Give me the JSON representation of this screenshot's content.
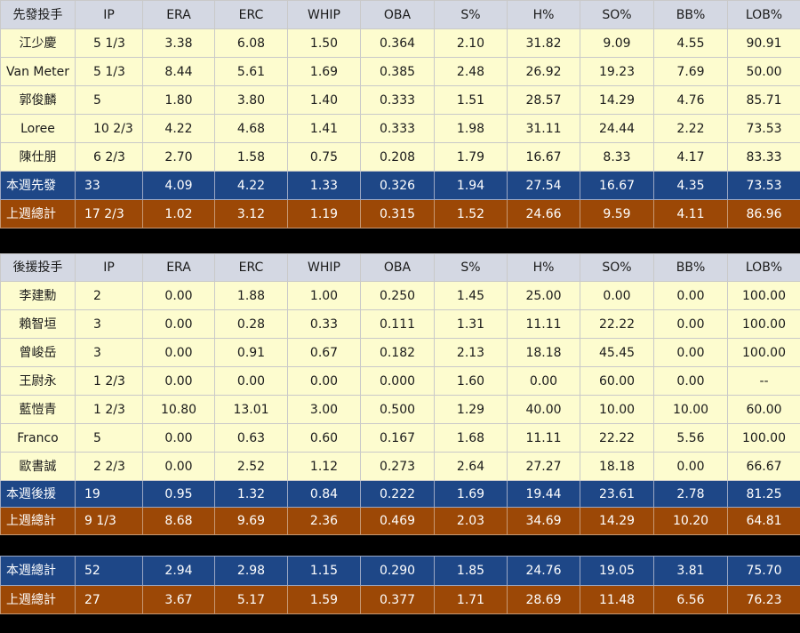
{
  "header": [
    "IP",
    "ERA",
    "ERC",
    "WHIP",
    "OBA",
    "S%",
    "H%",
    "SO%",
    "BB%",
    "LOB%"
  ],
  "starters": {
    "label": "先發投手",
    "rows": [
      [
        "江少慶",
        "5 1/3",
        "3.38",
        "6.08",
        "1.50",
        "0.364",
        "2.10",
        "31.82",
        "9.09",
        "4.55",
        "90.91"
      ],
      [
        "Van Meter",
        "5 1/3",
        "8.44",
        "5.61",
        "1.69",
        "0.385",
        "2.48",
        "26.92",
        "19.23",
        "7.69",
        "50.00"
      ],
      [
        "郭俊麟",
        "5",
        "1.80",
        "3.80",
        "1.40",
        "0.333",
        "1.51",
        "28.57",
        "14.29",
        "4.76",
        "85.71"
      ],
      [
        "Loree",
        "10 2/3",
        "4.22",
        "4.68",
        "1.41",
        "0.333",
        "1.98",
        "31.11",
        "24.44",
        "2.22",
        "73.53"
      ],
      [
        "陳仕朋",
        "6 2/3",
        "2.70",
        "1.58",
        "0.75",
        "0.208",
        "1.79",
        "16.67",
        "8.33",
        "4.17",
        "83.33"
      ]
    ],
    "week": [
      "本週先發",
      "33",
      "4.09",
      "4.22",
      "1.33",
      "0.326",
      "1.94",
      "27.54",
      "16.67",
      "4.35",
      "73.53"
    ],
    "last": [
      "上週總計",
      "17 2/3",
      "1.02",
      "3.12",
      "1.19",
      "0.315",
      "1.52",
      "24.66",
      "9.59",
      "4.11",
      "86.96"
    ]
  },
  "relievers": {
    "label": "後援投手",
    "rows": [
      [
        "李建勳",
        "2",
        "0.00",
        "1.88",
        "1.00",
        "0.250",
        "1.45",
        "25.00",
        "0.00",
        "0.00",
        "100.00"
      ],
      [
        "賴智垣",
        "3",
        "0.00",
        "0.28",
        "0.33",
        "0.111",
        "1.31",
        "11.11",
        "22.22",
        "0.00",
        "100.00"
      ],
      [
        "曾峻岳",
        "3",
        "0.00",
        "0.91",
        "0.67",
        "0.182",
        "2.13",
        "18.18",
        "45.45",
        "0.00",
        "100.00"
      ],
      [
        "王尉永",
        "1 2/3",
        "0.00",
        "0.00",
        "0.00",
        "0.000",
        "1.60",
        "0.00",
        "60.00",
        "0.00",
        "--"
      ],
      [
        "藍愷青",
        "1 2/3",
        "10.80",
        "13.01",
        "3.00",
        "0.500",
        "1.29",
        "40.00",
        "10.00",
        "10.00",
        "60.00"
      ],
      [
        "Franco",
        "5",
        "0.00",
        "0.63",
        "0.60",
        "0.167",
        "1.68",
        "11.11",
        "22.22",
        "5.56",
        "100.00"
      ],
      [
        "歐書誠",
        "2 2/3",
        "0.00",
        "2.52",
        "1.12",
        "0.273",
        "2.64",
        "27.27",
        "18.18",
        "0.00",
        "66.67"
      ]
    ],
    "week": [
      "本週後援",
      "19",
      "0.95",
      "1.32",
      "0.84",
      "0.222",
      "1.69",
      "19.44",
      "23.61",
      "2.78",
      "81.25"
    ],
    "last": [
      "上週總計",
      "9 1/3",
      "8.68",
      "9.69",
      "2.36",
      "0.469",
      "2.03",
      "34.69",
      "14.29",
      "10.20",
      "64.81"
    ]
  },
  "totals": {
    "week": [
      "本週總計",
      "52",
      "2.94",
      "2.98",
      "1.15",
      "0.290",
      "1.85",
      "24.76",
      "19.05",
      "3.81",
      "75.70"
    ],
    "last": [
      "上週總計",
      "27",
      "3.67",
      "5.17",
      "1.59",
      "0.377",
      "1.71",
      "28.69",
      "11.48",
      "6.56",
      "76.23"
    ]
  }
}
